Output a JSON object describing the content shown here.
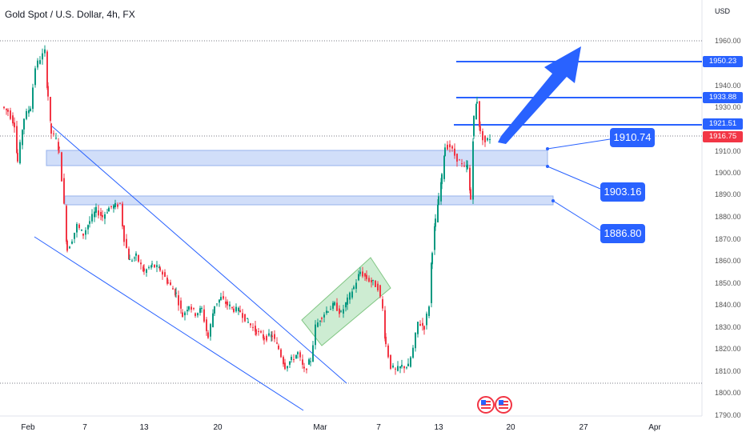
{
  "chart_data": {
    "type": "candlestick",
    "title": "Gold Spot / U.S. Dollar, 4h, FX",
    "currency": "USD",
    "y_ticks": [
      "1960.00",
      "1950.00",
      "1940.00",
      "1930.00",
      "1920.00",
      "1910.00",
      "1900.00",
      "1890.00",
      "1880.00",
      "1870.00",
      "1860.00",
      "1850.00",
      "1840.00",
      "1830.00",
      "1820.00",
      "1810.00",
      "1800.00",
      "1790.00"
    ],
    "ylim": [
      1789,
      1970
    ],
    "x_ticks": [
      "Feb",
      "7",
      "13",
      "20",
      "Mar",
      "7",
      "13",
      "20",
      "27",
      "Apr"
    ],
    "price_tags": [
      {
        "label": "1950.23",
        "color": "#2962ff"
      },
      {
        "label": "1933.88",
        "color": "#2962ff"
      },
      {
        "label": "1921.51",
        "color": "#2962ff"
      },
      {
        "label": "1916.75",
        "color": "#f23645"
      }
    ],
    "annotations": [
      "1910.74",
      "1903.16",
      "1886.80"
    ],
    "colors": {
      "up": "#089981",
      "down": "#f23645",
      "line": "#2962ff"
    }
  }
}
